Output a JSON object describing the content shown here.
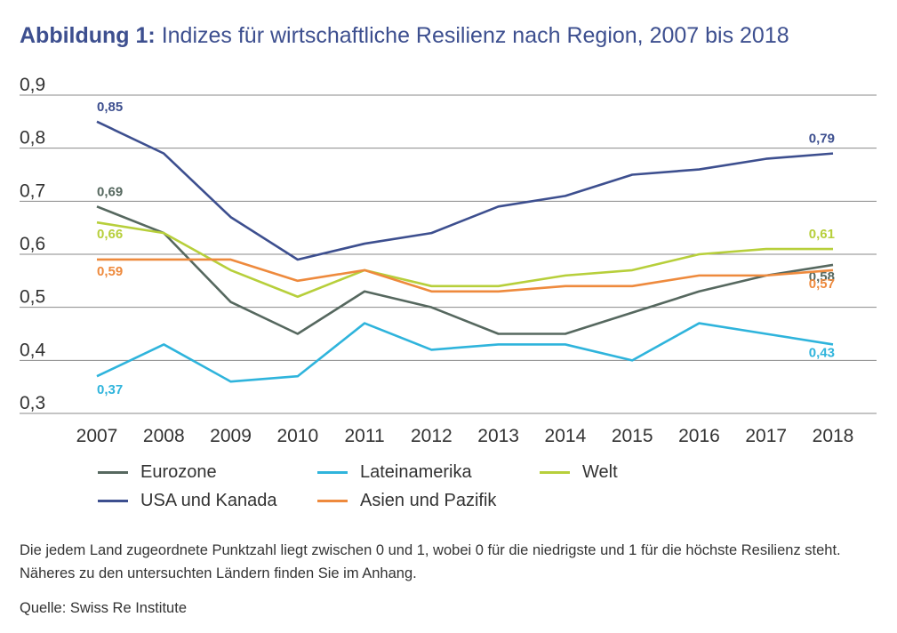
{
  "title": {
    "prefix": "Abbildung 1:",
    "text": "Indizes für wirtschaftliche Resilienz nach Region, 2007 bis 2018"
  },
  "note": "Die jedem Land zugeordnete Punktzahl liegt zwischen 0 und 1, wobei 0 für die niedrigste und 1 für die höchste Resilienz steht. Näheres zu den untersuchten Ländern finden Sie im Anhang.",
  "source": "Quelle: Swiss Re Institute",
  "chart_data": {
    "type": "line",
    "title": "Indizes für wirtschaftliche Resilienz nach Region, 2007 bis 2018",
    "xlabel": "",
    "ylabel": "",
    "ylim": [
      0.3,
      0.9
    ],
    "grid": true,
    "legend_position": "bottom",
    "x": [
      "2007",
      "2008",
      "2009",
      "2010",
      "2011",
      "2012",
      "2013",
      "2014",
      "2015",
      "2016",
      "2017",
      "2018"
    ],
    "y_ticks": [
      "0,9",
      "0,8",
      "0,7",
      "0,6",
      "0,5",
      "0,4",
      "0,3"
    ],
    "series": [
      {
        "name": "USA und Kanada",
        "color": "#3d4f8f",
        "values": [
          0.85,
          0.79,
          0.67,
          0.59,
          0.62,
          0.64,
          0.69,
          0.71,
          0.75,
          0.76,
          0.78,
          0.79
        ],
        "labels": [
          {
            "index": 0,
            "text": "0,85"
          },
          {
            "index": 11,
            "text": "0,79"
          }
        ]
      },
      {
        "name": "Eurozone",
        "color": "#56685f",
        "values": [
          0.69,
          0.64,
          0.51,
          0.45,
          0.53,
          0.5,
          0.45,
          0.45,
          0.49,
          0.53,
          0.56,
          0.58
        ],
        "labels": [
          {
            "index": 0,
            "text": "0,69"
          },
          {
            "index": 11,
            "text": "0,58"
          }
        ]
      },
      {
        "name": "Welt",
        "color": "#b7cf3b",
        "values": [
          0.66,
          0.64,
          0.57,
          0.52,
          0.57,
          0.54,
          0.54,
          0.56,
          0.57,
          0.6,
          0.61,
          0.61
        ],
        "labels": [
          {
            "index": 0,
            "text": "0,66"
          },
          {
            "index": 11,
            "text": "0,61"
          }
        ]
      },
      {
        "name": "Asien und Pazifik",
        "color": "#ee8a3d",
        "values": [
          0.59,
          0.59,
          0.59,
          0.55,
          0.57,
          0.53,
          0.53,
          0.54,
          0.54,
          0.56,
          0.56,
          0.57
        ],
        "labels": [
          {
            "index": 0,
            "text": "0,59"
          },
          {
            "index": 11,
            "text": "0,57"
          }
        ]
      },
      {
        "name": "Lateinamerika",
        "color": "#2fb4dc",
        "values": [
          0.37,
          0.43,
          0.36,
          0.37,
          0.47,
          0.42,
          0.43,
          0.43,
          0.4,
          0.47,
          0.45,
          0.43
        ],
        "labels": [
          {
            "index": 0,
            "text": "0,37"
          },
          {
            "index": 11,
            "text": "0,43"
          }
        ]
      }
    ],
    "legend": [
      {
        "name": "Eurozone",
        "color": "#56685f"
      },
      {
        "name": "Lateinamerika",
        "color": "#2fb4dc"
      },
      {
        "name": "Welt",
        "color": "#b7cf3b"
      },
      {
        "name": "USA und Kanada",
        "color": "#3d4f8f"
      },
      {
        "name": "Asien und Pazifik",
        "color": "#ee8a3d"
      }
    ]
  }
}
